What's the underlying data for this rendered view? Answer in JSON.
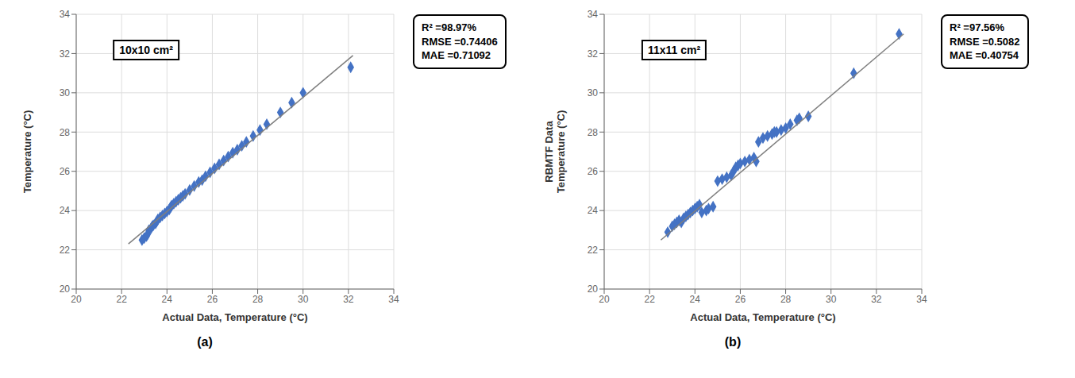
{
  "chart_data": [
    {
      "type": "scatter",
      "xlabel": "Actual Data, Temperature (°C)",
      "ylabel": "Temperature (°C)",
      "xlim": [
        20,
        34
      ],
      "ylim": [
        20,
        34
      ],
      "xticks": [
        20,
        22,
        24,
        26,
        28,
        30,
        32,
        34
      ],
      "yticks": [
        20,
        22,
        24,
        26,
        28,
        30,
        32,
        34
      ],
      "grid": true,
      "annotations": [
        "10x10 cm²",
        "R² =98.97%\nRMSE =0.74406\nMAE =0.71092",
        "(a)"
      ],
      "series": [
        {
          "type": "scatter",
          "color": "#4472C4",
          "marker": "diamond",
          "x": [
            22.9,
            23.0,
            23.1,
            23.15,
            23.2,
            23.3,
            23.35,
            23.4,
            23.5,
            23.55,
            23.6,
            23.7,
            23.8,
            23.9,
            24.0,
            24.1,
            24.15,
            24.2,
            24.3,
            24.4,
            24.5,
            24.6,
            24.7,
            24.8,
            25.0,
            25.2,
            25.4,
            25.55,
            25.7,
            25.9,
            26.1,
            26.3,
            26.5,
            26.7,
            26.9,
            27.1,
            27.3,
            27.5,
            27.8,
            28.1,
            28.4,
            29.0,
            29.5,
            30.0,
            32.1
          ],
          "values": [
            22.5,
            22.6,
            22.7,
            22.8,
            23.0,
            23.1,
            23.2,
            23.25,
            23.35,
            23.45,
            23.55,
            23.65,
            23.75,
            23.85,
            23.95,
            24.05,
            24.15,
            24.25,
            24.35,
            24.45,
            24.55,
            24.65,
            24.75,
            24.85,
            25.05,
            25.25,
            25.45,
            25.55,
            25.75,
            25.95,
            26.15,
            26.35,
            26.55,
            26.75,
            26.95,
            27.1,
            27.3,
            27.5,
            27.8,
            28.1,
            28.4,
            29.0,
            29.5,
            30.0,
            31.3
          ]
        },
        {
          "type": "line",
          "color": "#7F7F7F",
          "x": [
            22.3,
            32.2
          ],
          "values": [
            22.3,
            31.9
          ]
        }
      ]
    },
    {
      "type": "scatter",
      "xlabel": "Actual Data, Temperature (°C)",
      "ylabel": "RBMTF Data\nTemperature (°C)",
      "xlim": [
        20,
        34
      ],
      "ylim": [
        20,
        34
      ],
      "xticks": [
        20,
        22,
        24,
        26,
        28,
        30,
        32,
        34
      ],
      "yticks": [
        20,
        22,
        24,
        26,
        28,
        30,
        32,
        34
      ],
      "grid": true,
      "annotations": [
        "11x11 cm²",
        "R² =97.56%\nRMSE =0.5082\nMAE =0.40754",
        "(b)"
      ],
      "series": [
        {
          "type": "scatter",
          "color": "#4472C4",
          "marker": "diamond",
          "x": [
            22.8,
            23.0,
            23.1,
            23.2,
            23.3,
            23.4,
            23.5,
            23.6,
            23.7,
            23.8,
            23.9,
            24.0,
            24.1,
            24.2,
            24.3,
            24.5,
            24.6,
            24.8,
            25.0,
            25.2,
            25.4,
            25.6,
            25.7,
            25.8,
            25.9,
            26.0,
            26.2,
            26.4,
            26.6,
            26.7,
            26.8,
            27.0,
            27.2,
            27.4,
            27.5,
            27.6,
            27.8,
            28.0,
            28.2,
            28.5,
            28.6,
            29.0,
            31.0,
            33.0
          ],
          "values": [
            22.9,
            23.2,
            23.3,
            23.4,
            23.5,
            23.4,
            23.6,
            23.7,
            23.8,
            23.9,
            24.0,
            24.1,
            24.2,
            24.3,
            23.9,
            24.0,
            24.1,
            24.2,
            25.5,
            25.6,
            25.7,
            25.8,
            26.0,
            26.2,
            26.3,
            26.4,
            26.5,
            26.6,
            26.7,
            26.5,
            27.5,
            27.7,
            27.8,
            27.9,
            28.0,
            28.0,
            28.1,
            28.2,
            28.4,
            28.6,
            28.7,
            28.8,
            31.0,
            33.0
          ]
        },
        {
          "type": "line",
          "color": "#7F7F7F",
          "x": [
            22.5,
            33.2
          ],
          "values": [
            22.5,
            33.0
          ]
        }
      ]
    }
  ]
}
